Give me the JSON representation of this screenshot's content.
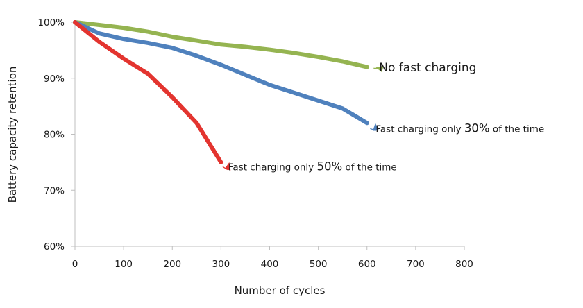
{
  "chart_data": {
    "type": "line",
    "title": "",
    "xlabel": "Number of cycles",
    "ylabel": "Battery capacity retention",
    "xlim": [
      0,
      800
    ],
    "ylim": [
      60,
      100
    ],
    "xticks": [
      "0",
      "100",
      "200",
      "300",
      "400",
      "500",
      "600",
      "700",
      "800"
    ],
    "yticks": [
      "60%",
      "70%",
      "80%",
      "90%",
      "100%"
    ],
    "grid": false,
    "legend": "none",
    "series": [
      {
        "color": "#95b451",
        "x": [
          0,
          50,
          100,
          150,
          200,
          250,
          300,
          350,
          400,
          450,
          500,
          550,
          600
        ],
        "y": [
          100,
          99.5,
          99,
          98.3,
          97.4,
          96.7,
          96,
          95.6,
          95.1,
          94.5,
          93.8,
          93,
          92
        ]
      },
      {
        "color": "#4f81bd",
        "x": [
          0,
          50,
          100,
          150,
          200,
          250,
          300,
          350,
          400,
          450,
          500,
          550,
          600
        ],
        "y": [
          100,
          98,
          97,
          96.3,
          95.4,
          94,
          92.4,
          90.6,
          88.8,
          87.4,
          86,
          84.6,
          82
        ]
      },
      {
        "color": "#e3342f",
        "x": [
          0,
          50,
          100,
          150,
          200,
          250,
          300
        ],
        "y": [
          100,
          96.5,
          93.5,
          90.8,
          86.6,
          82,
          75
        ]
      }
    ],
    "annotations": [
      {
        "text": "No fast charging",
        "x": 625,
        "y": 91.8
      },
      {
        "pre": "Fast charging only ",
        "num": "30%",
        "post": " of the time",
        "x": 618,
        "y": 81
      },
      {
        "pre": "Fast charging only ",
        "num": "50%",
        "post": " of the time",
        "x": 315,
        "y": 74.2
      }
    ]
  }
}
